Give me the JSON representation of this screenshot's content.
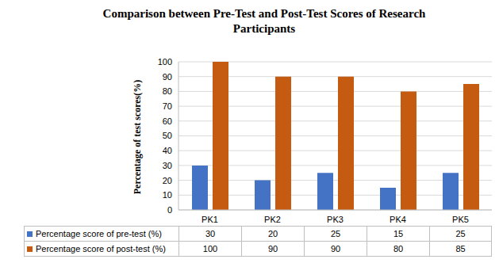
{
  "chart_data": {
    "type": "bar",
    "title": "Comparison between Pre-Test and Post-Test Scores of Research Participants",
    "y_label": "Percentage of test scores(%)",
    "categories": [
      "PK1",
      "PK2",
      "PK3",
      "PK4",
      "PK5"
    ],
    "series": [
      {
        "name": "Percentage score of pre-test (%)",
        "color": "#4472c4",
        "values": [
          30,
          20,
          25,
          15,
          25
        ]
      },
      {
        "name": "Percentage score of post-test (%)",
        "color": "#c55a11",
        "values": [
          100,
          90,
          90,
          80,
          85
        ]
      }
    ],
    "ylim": [
      0,
      100
    ],
    "yticks": [
      0,
      10,
      20,
      30,
      40,
      50,
      60,
      70,
      80,
      90,
      100
    ],
    "grid": true
  }
}
